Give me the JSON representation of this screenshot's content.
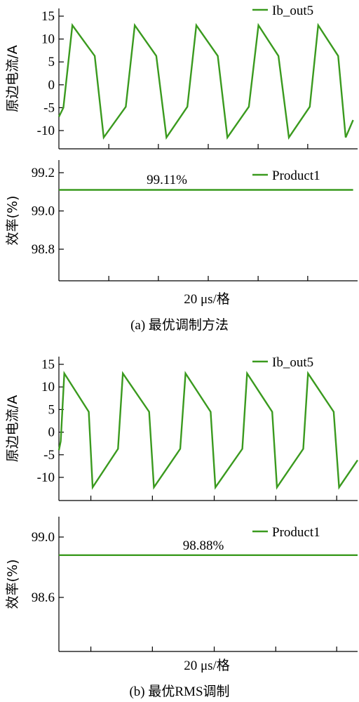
{
  "colors": {
    "series": "#3a9a1e",
    "axis": "#000000"
  },
  "chart_data": [
    {
      "type": "line",
      "ylabel": "原边电流/A",
      "ylim": [
        -13,
        16
      ],
      "yticks": [
        -10,
        -5,
        0,
        5,
        10,
        15
      ],
      "xlim": [
        0,
        100
      ],
      "xticks_minor": [
        16.7,
        33.3,
        50,
        66.7,
        83.3
      ],
      "legend": "top-right",
      "series": [
        {
          "name": "Ib_out5",
          "x": [
            0,
            1.5,
            4.5,
            12,
            15,
            22.4,
            25.4,
            32.6,
            36,
            43,
            46,
            53.2,
            56.4,
            63.6,
            66.8,
            73.5,
            77,
            84,
            86.8,
            93.5,
            96
          ],
          "y": [
            -7,
            -5,
            13,
            6.3,
            -11.5,
            -4.8,
            13,
            6.3,
            -11.5,
            -4.8,
            13,
            6.3,
            -11.5,
            -4.8,
            13,
            6.3,
            -11.5,
            -4.8,
            13,
            6.3,
            -11.5
          ]
        }
      ],
      "series_tail": {
        "x": [
          96,
          98.5
        ],
        "y": [
          -11.5,
          -7.7
        ]
      }
    },
    {
      "type": "line",
      "ylabel": "效率(%)",
      "ylim": [
        98.63,
        99.2
      ],
      "yticks": [
        98.8,
        99.0,
        99.2
      ],
      "ytick_labels": [
        "98.8",
        "99.0",
        "99.2"
      ],
      "xlim": [
        0,
        100
      ],
      "xticks_minor": [
        16.7,
        33.3,
        50,
        66.7,
        83.3
      ],
      "xlabel": "20 μs/格",
      "legend": "top-right",
      "annotation": "99.11%",
      "series": [
        {
          "name": "Product1",
          "x": [
            0,
            98.5
          ],
          "y": [
            99.11,
            99.11
          ]
        }
      ],
      "caption": "(a) 最优调制方法"
    },
    {
      "type": "line",
      "ylabel": "原边电流/A",
      "ylim": [
        -14,
        16
      ],
      "yticks": [
        -10,
        -5,
        0,
        5,
        10,
        15
      ],
      "xlim": [
        0,
        100
      ],
      "xticks_minor": [
        10.7,
        31.3,
        52,
        72.6,
        93
      ],
      "legend": "top-right",
      "series": [
        {
          "name": "Ib_out5",
          "x": [
            0,
            0.6,
            1.8,
            10,
            11.3,
            19.8,
            21.4,
            30.2,
            31.8,
            40.6,
            42.4,
            50.8,
            52.4,
            61.4,
            63,
            71.4,
            73,
            81.8,
            83.4,
            92,
            93.8
          ],
          "y": [
            -4,
            -2,
            13,
            4.5,
            -12.2,
            -3.7,
            13,
            4.5,
            -12.2,
            -3.7,
            13,
            4.5,
            -12.2,
            -3.7,
            13,
            4.5,
            -12.2,
            -3.7,
            13,
            4.5,
            -12.2
          ]
        }
      ],
      "series_tail": {
        "x": [
          93.8,
          100
        ],
        "y": [
          -12.2,
          -6.2
        ]
      }
    },
    {
      "type": "line",
      "ylabel": "效率(%)",
      "ylim": [
        98.38,
        99.0
      ],
      "yticks": [
        98.6,
        99.0
      ],
      "ytick_labels": [
        "98.6",
        "99.0"
      ],
      "xlim": [
        0,
        100
      ],
      "xticks_minor": [
        10.7,
        31.3,
        52,
        72.6,
        93
      ],
      "xlabel": "20 μs/格",
      "legend": "top-right",
      "annotation": "98.88%",
      "series": [
        {
          "name": "Product1",
          "x": [
            0,
            100
          ],
          "y": [
            98.88,
            98.88
          ]
        }
      ],
      "caption": "(b) 最优RMS调制"
    }
  ]
}
